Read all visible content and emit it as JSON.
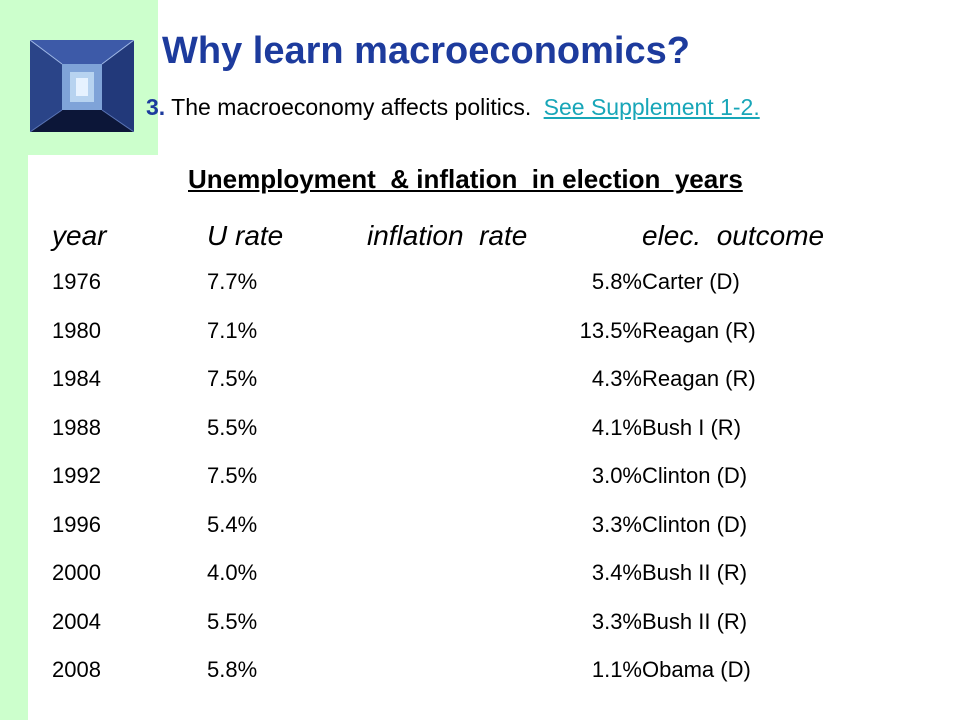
{
  "slide": {
    "title": "Why learn macroeconomics?",
    "point_number": "3.",
    "point_text": "The macroeconomy affects politics.",
    "link_text": "See Supplement 1-2."
  },
  "table": {
    "title": "Unemployment  & inflation  in election  years",
    "headers": [
      "year",
      "U rate",
      "inflation  rate",
      "elec.  outcome"
    ],
    "rows": [
      [
        "1976",
        "7.7%",
        "5.8%",
        "Carter (D)"
      ],
      [
        "1980",
        "7.1%",
        "13.5%",
        "Reagan (R)"
      ],
      [
        "1984",
        "7.5%",
        "4.3%",
        "Reagan (R)"
      ],
      [
        "1988",
        "5.5%",
        "4.1%",
        "Bush I (R)"
      ],
      [
        "1992",
        "7.5%",
        "3.0%",
        "Clinton (D)"
      ],
      [
        "1996",
        "5.4%",
        "3.3%",
        "Clinton (D)"
      ],
      [
        "2000",
        "4.0%",
        "3.4%",
        "Bush II (R)"
      ],
      [
        "2004",
        "5.5%",
        "3.3%",
        "Bush II (R)"
      ],
      [
        "2008",
        "5.8%",
        "1.1%",
        "Obama (D)"
      ]
    ]
  },
  "colors": {
    "accent_green": "#ccffcc",
    "title_blue": "#1d3b9d",
    "link_teal": "#18a6b8"
  },
  "icons": {
    "logo": "corridor-logo-icon"
  }
}
